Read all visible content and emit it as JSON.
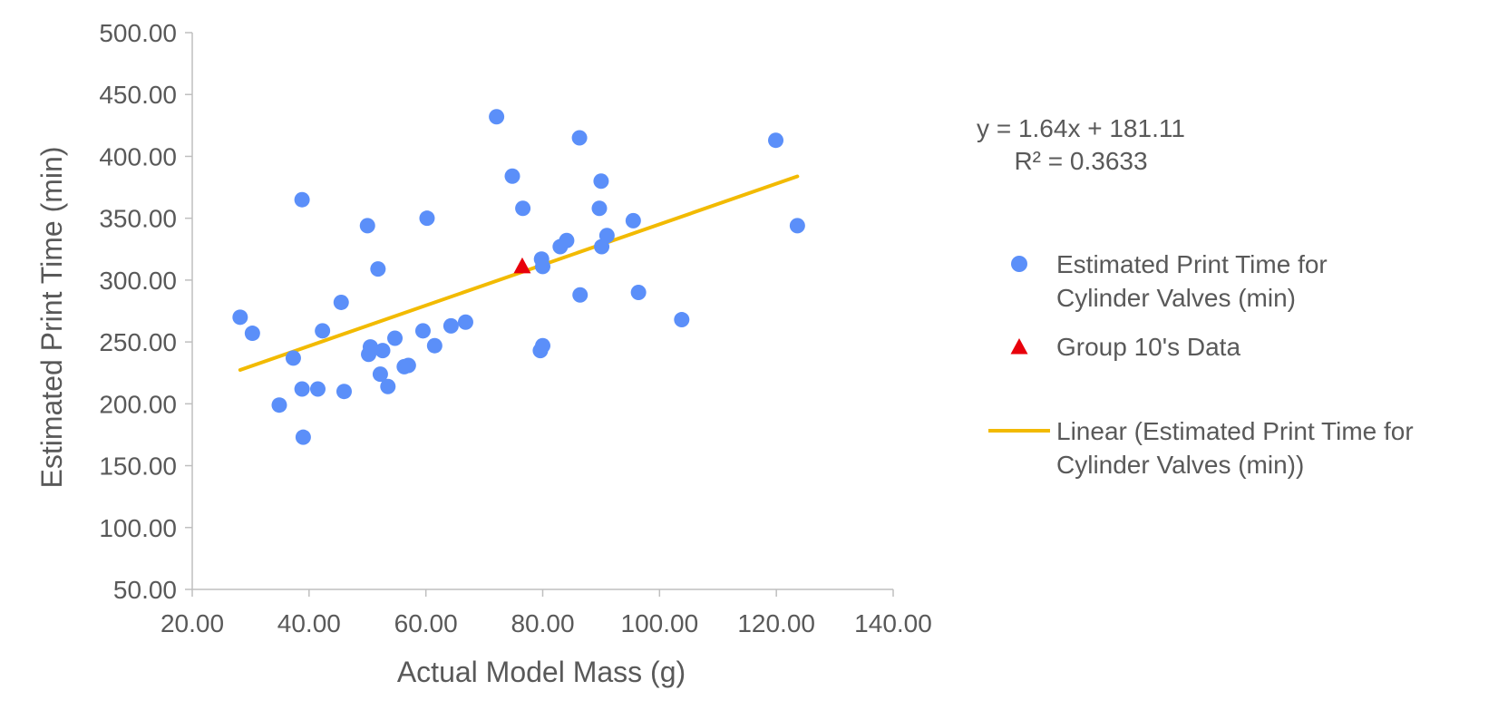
{
  "chart_data": {
    "type": "scatter",
    "xlabel": "Actual Model Mass (g)",
    "ylabel": "Estimated Print Time (min)",
    "xlim": [
      20,
      140
    ],
    "ylim": [
      50,
      500
    ],
    "x_ticks": [
      "20.00",
      "40.00",
      "60.00",
      "80.00",
      "100.00",
      "120.00",
      "140.00"
    ],
    "y_ticks": [
      "50.00",
      "100.00",
      "150.00",
      "200.00",
      "250.00",
      "300.00",
      "350.00",
      "400.00",
      "450.00",
      "500.00"
    ],
    "grid": false,
    "legend_position": "right",
    "series": [
      {
        "name": "Estimated Print Time for Cylinder Valves (min)",
        "legend_lines": [
          "Estimated Print Time for",
          "Cylinder Valves (min)"
        ],
        "marker": "circle",
        "color": "#5B8FF9",
        "points": [
          [
            28.2,
            270
          ],
          [
            30.3,
            257
          ],
          [
            34.9,
            199
          ],
          [
            37.3,
            237
          ],
          [
            38.8,
            365
          ],
          [
            38.8,
            212
          ],
          [
            39.0,
            173
          ],
          [
            41.5,
            212
          ],
          [
            42.3,
            259
          ],
          [
            45.5,
            282
          ],
          [
            46.0,
            210
          ],
          [
            50.0,
            344
          ],
          [
            50.2,
            240
          ],
          [
            50.5,
            246
          ],
          [
            51.8,
            309
          ],
          [
            52.2,
            224
          ],
          [
            52.6,
            243
          ],
          [
            53.5,
            214
          ],
          [
            54.7,
            253
          ],
          [
            56.3,
            230
          ],
          [
            57.0,
            231
          ],
          [
            59.5,
            259
          ],
          [
            60.2,
            350
          ],
          [
            61.5,
            247
          ],
          [
            64.3,
            263
          ],
          [
            66.8,
            266
          ],
          [
            72.1,
            432
          ],
          [
            74.8,
            384
          ],
          [
            76.6,
            358
          ],
          [
            79.6,
            243
          ],
          [
            79.8,
            317
          ],
          [
            80.0,
            247
          ],
          [
            80.0,
            311
          ],
          [
            83.0,
            327
          ],
          [
            84.1,
            332
          ],
          [
            86.3,
            415
          ],
          [
            86.4,
            288
          ],
          [
            89.7,
            358
          ],
          [
            90.0,
            380
          ],
          [
            90.1,
            327
          ],
          [
            91.0,
            336
          ],
          [
            95.5,
            348
          ],
          [
            96.4,
            290
          ],
          [
            103.8,
            268
          ],
          [
            119.9,
            413
          ],
          [
            123.6,
            344
          ]
        ]
      },
      {
        "name": "Group 10's Data",
        "legend_lines": [
          "Group 10's Data"
        ],
        "marker": "triangle",
        "color": "#E8000B",
        "points": [
          [
            76.5,
            311
          ]
        ]
      }
    ],
    "trendline": {
      "name": "Linear (Estimated Print Time for Cylinder Valves (min))",
      "legend_lines": [
        "Linear (Estimated Print Time for",
        "Cylinder Valves (min))"
      ],
      "type": "linear",
      "slope": 1.64,
      "intercept": 181.11,
      "x_range": [
        28.2,
        123.6
      ],
      "color": "#F2BA00"
    },
    "equation_label": "y = 1.64x + 181.11",
    "r2_label": "R² = 0.3633"
  }
}
